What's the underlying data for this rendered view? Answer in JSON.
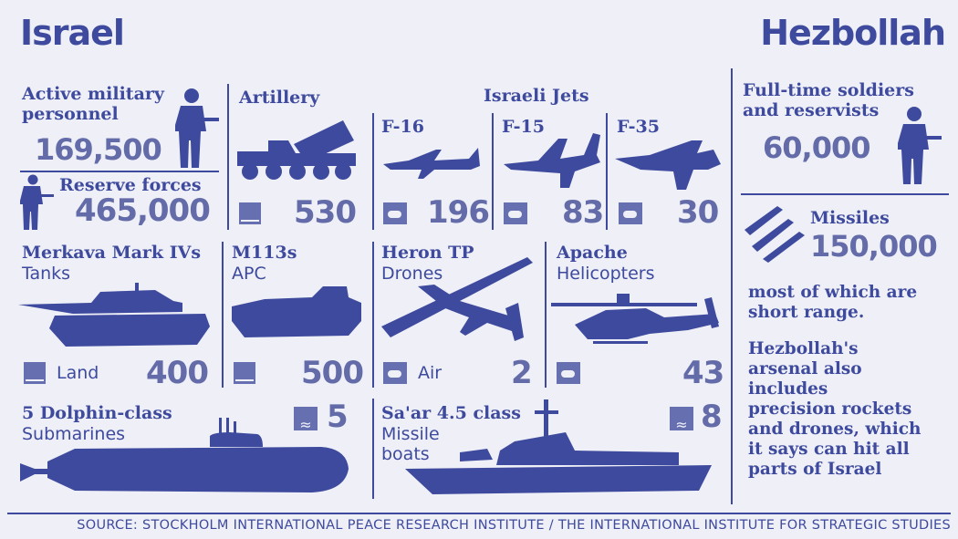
{
  "left_title": "Israel",
  "right_title": "Hezbollah",
  "israel": {
    "personnel": {
      "label_line1": "Active military",
      "label_line2": "personnel",
      "value": "169,500"
    },
    "reserve": {
      "label": "Reserve forces",
      "value": "465,000"
    },
    "artillery": {
      "label": "Artillery",
      "value": "530"
    },
    "jets_heading": "Israeli Jets",
    "f16": {
      "label": "F-16",
      "value": "196"
    },
    "f15": {
      "label": "F-15",
      "value": "83"
    },
    "f35": {
      "label": "F-35",
      "value": "30"
    },
    "tanks": {
      "label": "Merkava Mark IVs",
      "sub": "Tanks",
      "legend": "Land",
      "value": "400"
    },
    "apc": {
      "label": "M113s",
      "sub": "APC",
      "value": "500"
    },
    "drones": {
      "label": "Heron TP",
      "sub": "Drones",
      "legend": "Air",
      "value": "2"
    },
    "helicopters": {
      "label": "Apache",
      "sub": "Helicopters",
      "value": "43"
    },
    "submarines": {
      "label": "5 Dolphin-class",
      "sub": "Submarines",
      "value": "5"
    },
    "boats": {
      "label": "Sa'ar 4.5 class",
      "sub_line1": "Missile",
      "sub_line2": "boats",
      "value": "8"
    }
  },
  "hezbollah": {
    "soldiers": {
      "label_line1": "Full-time soldiers",
      "label_line2": "and reservists",
      "value": "60,000"
    },
    "missiles": {
      "label": "Missiles",
      "value": "150,000",
      "note_line1": "most of which are",
      "note_line2": "short range."
    },
    "arsenal": {
      "line1": "Hezbollah's",
      "line2": "arsenal also",
      "line3": "includes",
      "line4": "precision rockets",
      "line5": "and drones, which",
      "line6": "it says can hit all",
      "line7": "parts of Israel"
    }
  },
  "source": "SOURCE: STOCKHOLM INTERNATIONAL PEACE RESEARCH INSTITUTE / THE INTERNATIONAL INSTITUTE FOR STRATEGIC STUDIES",
  "icons": [
    "soldier-icon",
    "rocket-launcher-icon",
    "jet-icon",
    "tank-icon",
    "apc-icon",
    "drone-icon",
    "helicopter-icon",
    "submarine-icon",
    "warship-icon",
    "missile-icon",
    "land-icon",
    "cloud-icon",
    "wave-icon"
  ],
  "colors": {
    "primary": "#3e4a9d",
    "numbers": "#636ba8",
    "background": "#eeeff7"
  }
}
